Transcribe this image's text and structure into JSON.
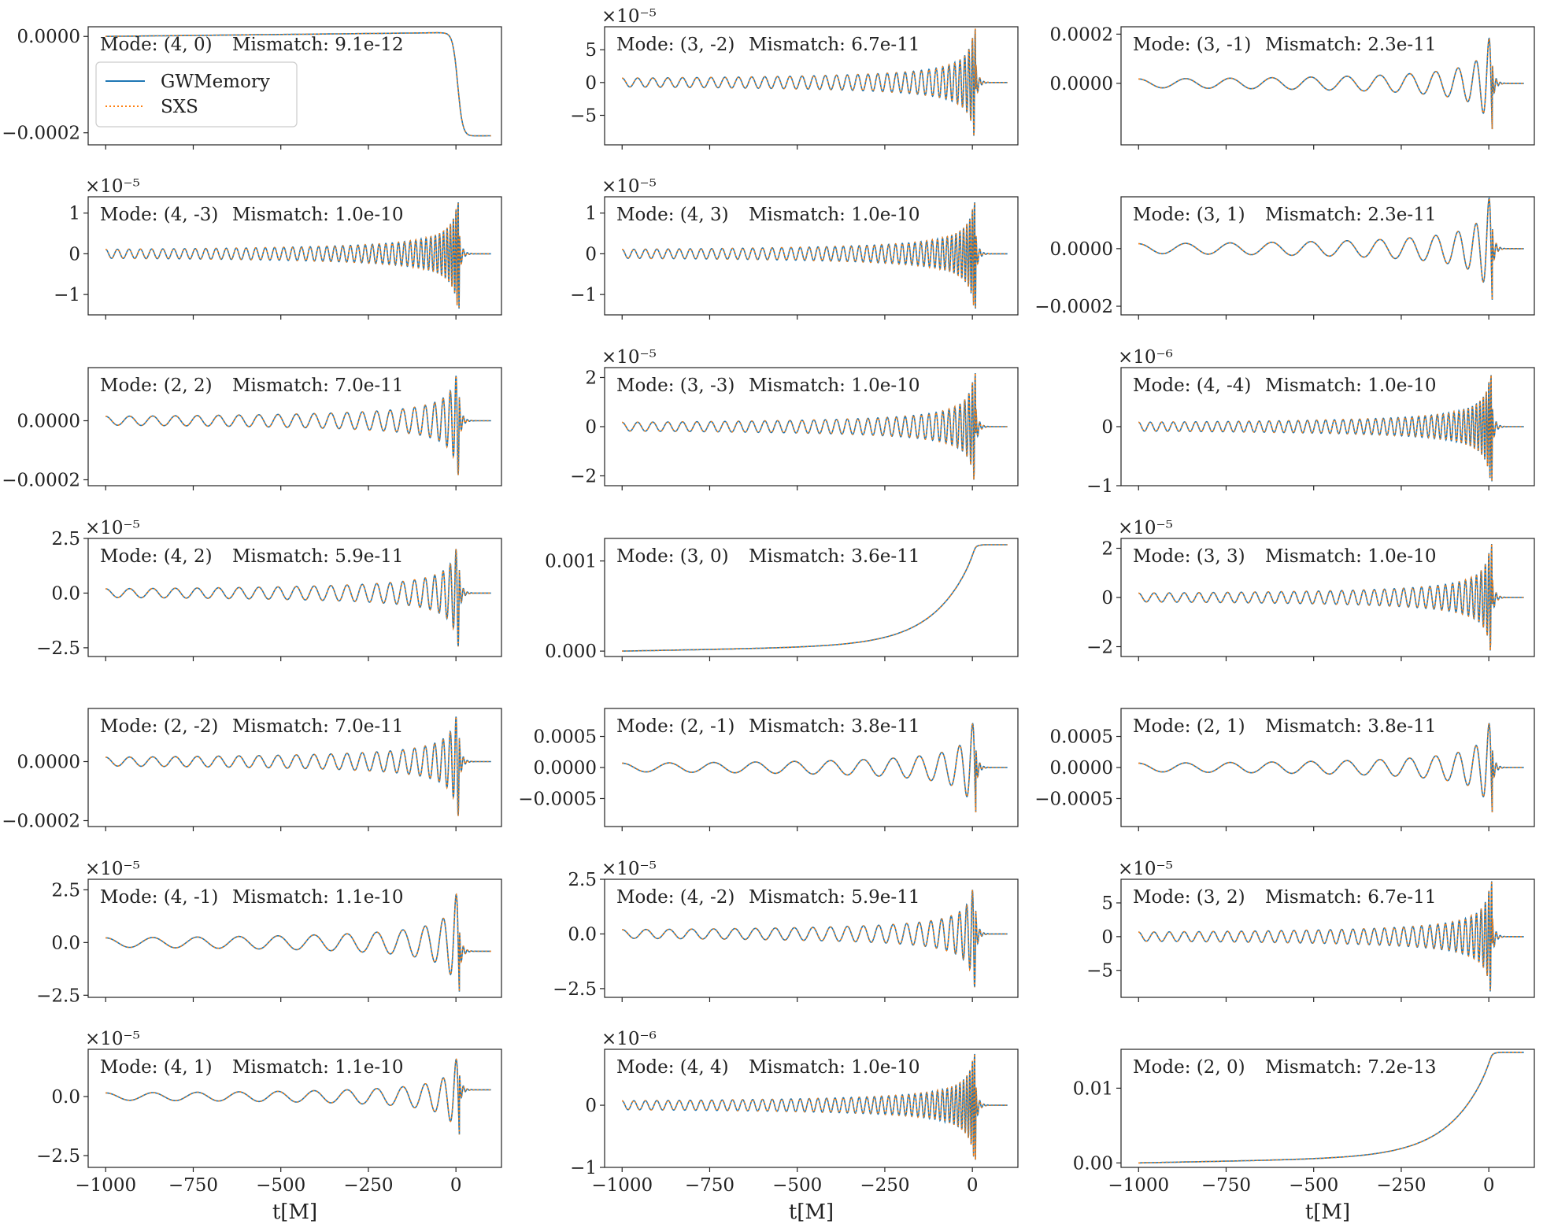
{
  "figure": {
    "xlabel": "t[M]",
    "legend": {
      "placement": "upper-left of first panel",
      "entries": [
        {
          "name": "GWMemory",
          "color": "#1f77b4",
          "style": "solid"
        },
        {
          "name": "SXS",
          "color": "#ff7f0e",
          "style": "dotted"
        }
      ]
    },
    "x_tick_labels": [
      "−1000",
      "−750",
      "−500",
      "−250",
      "0"
    ],
    "x_ticks": [
      -1000,
      -750,
      -500,
      -250,
      0
    ],
    "xlim": [
      -1050,
      130
    ]
  },
  "chart_data": [
    {
      "type": "line",
      "mode_text": "Mode: (4, 0)",
      "mismatch_text": "Mismatch: 9.1e-12",
      "multiplier": "",
      "shape": "step-down",
      "yticks": [
        {
          "v": 0.0,
          "label": "0.0000"
        },
        {
          "v": -0.0002,
          "label": "−0.0002"
        }
      ],
      "ylim": [
        -0.000225,
        2e-05
      ],
      "amp": 0.000215,
      "pre": 8e-06,
      "cycles": 0,
      "ringdown": 0
    },
    {
      "type": "line",
      "mode_text": "Mode: (3, -2)",
      "mismatch_text": "Mismatch: 6.7e-11",
      "multiplier": "×10⁻⁵",
      "shape": "chirp",
      "yticks": [
        {
          "v": 5,
          "label": "5"
        },
        {
          "v": 0,
          "label": "0"
        },
        {
          "v": -5,
          "label": "−5"
        }
      ],
      "ylim": [
        -9.5,
        8.5
      ],
      "amp": 8.3,
      "pre": 0.3,
      "cycles": 34,
      "ringdown": 0
    },
    {
      "type": "line",
      "mode_text": "Mode: (3, -1)",
      "mismatch_text": "Mismatch: 2.3e-11",
      "multiplier": "",
      "shape": "chirp",
      "yticks": [
        {
          "v": 0.0002,
          "label": "0.0002"
        },
        {
          "v": 0.0,
          "label": "0.0000"
        }
      ],
      "ylim": [
        -0.00025,
        0.00023
      ],
      "amp": 0.00022,
      "pre": 0.01,
      "cycles": 11,
      "ringdown": 0
    },
    {
      "type": "line",
      "mode_text": "Mode: (4, -3)",
      "mismatch_text": "Mismatch: 1.0e-10",
      "multiplier": "×10⁻⁵",
      "shape": "chirp",
      "yticks": [
        {
          "v": 1,
          "label": "1"
        },
        {
          "v": 0,
          "label": "0"
        },
        {
          "v": -1,
          "label": "−1"
        }
      ],
      "ylim": [
        -1.5,
        1.4
      ],
      "amp": 1.35,
      "pre": 0.25,
      "cycles": 45,
      "ringdown": 0
    },
    {
      "type": "line",
      "mode_text": "Mode: (4, 3)",
      "mismatch_text": "Mismatch: 1.0e-10",
      "multiplier": "×10⁻⁵",
      "shape": "chirp",
      "yticks": [
        {
          "v": 1,
          "label": "1"
        },
        {
          "v": 0,
          "label": "0"
        },
        {
          "v": -1,
          "label": "−1"
        }
      ],
      "ylim": [
        -1.5,
        1.4
      ],
      "amp": 1.35,
      "pre": 0.25,
      "cycles": 45,
      "ringdown": 0
    },
    {
      "type": "line",
      "mode_text": "Mode: (3, 1)",
      "mismatch_text": "Mismatch: 2.3e-11",
      "multiplier": "",
      "shape": "chirp",
      "yticks": [
        {
          "v": 0.0,
          "label": "0.0000"
        },
        {
          "v": -0.0002,
          "label": "−0.0002"
        }
      ],
      "ylim": [
        -0.00023,
        0.00018
      ],
      "amp": 0.00021,
      "pre": 0.0,
      "cycles": 11,
      "ringdown": 2e-05
    },
    {
      "type": "line",
      "mode_text": "Mode: (2, 2)",
      "mismatch_text": "Mismatch: 7.0e-11",
      "multiplier": "",
      "shape": "chirp",
      "yticks": [
        {
          "v": 0.0,
          "label": "0.0000"
        },
        {
          "v": -0.0002,
          "label": "−0.0002"
        }
      ],
      "ylim": [
        -0.00022,
        0.00018
      ],
      "amp": 0.000185,
      "pre": 0.0,
      "cycles": 22,
      "ringdown": 0
    },
    {
      "type": "line",
      "mode_text": "Mode: (3, -3)",
      "mismatch_text": "Mismatch: 1.0e-10",
      "multiplier": "×10⁻⁵",
      "shape": "chirp",
      "yticks": [
        {
          "v": 2,
          "label": "2"
        },
        {
          "v": 0,
          "label": "0"
        },
        {
          "v": -2,
          "label": "−2"
        }
      ],
      "ylim": [
        -2.4,
        2.4
      ],
      "amp": 2.2,
      "pre": 0.25,
      "cycles": 34,
      "ringdown": 0
    },
    {
      "type": "line",
      "mode_text": "Mode: (4, -4)",
      "mismatch_text": "Mismatch: 1.0e-10",
      "multiplier": "×10⁻⁶",
      "shape": "chirp",
      "yticks": [
        {
          "v": 0,
          "label": "0"
        },
        {
          "v": -1,
          "label": "−1"
        }
      ],
      "ylim": [
        -1.0,
        1.0
      ],
      "amp": 0.93,
      "pre": 0.25,
      "cycles": 45,
      "ringdown": 0
    },
    {
      "type": "line",
      "mode_text": "Mode: (4, 2)",
      "mismatch_text": "Mismatch: 5.9e-11",
      "multiplier": "×10⁻⁵",
      "shape": "chirp",
      "yticks": [
        {
          "v": 2.5,
          "label": "2.5"
        },
        {
          "v": 0.0,
          "label": "0.0"
        },
        {
          "v": -2.5,
          "label": "−2.5"
        }
      ],
      "ylim": [
        -2.9,
        2.5
      ],
      "amp": 2.45,
      "pre": 0.1,
      "cycles": 22,
      "ringdown": 0
    },
    {
      "type": "line",
      "mode_text": "Mode: (3, 0)",
      "mismatch_text": "Mismatch: 3.6e-11",
      "multiplier": "",
      "shape": "rise",
      "yticks": [
        {
          "v": 0.001,
          "label": "0.001"
        },
        {
          "v": 0.0,
          "label": "0.000"
        }
      ],
      "ylim": [
        -6e-05,
        0.00125
      ],
      "amp": 0.00118,
      "pre": 0.0,
      "cycles": 0,
      "ringdown": 0
    },
    {
      "type": "line",
      "mode_text": "Mode: (3, 3)",
      "mismatch_text": "Mismatch: 1.0e-10",
      "multiplier": "×10⁻⁵",
      "shape": "chirp",
      "yticks": [
        {
          "v": 2,
          "label": "2"
        },
        {
          "v": 0,
          "label": "0"
        },
        {
          "v": -2,
          "label": "−2"
        }
      ],
      "ylim": [
        -2.4,
        2.4
      ],
      "amp": 2.2,
      "pre": 0.25,
      "cycles": 34,
      "ringdown": 0
    },
    {
      "type": "line",
      "mode_text": "Mode: (2, -2)",
      "mismatch_text": "Mismatch: 7.0e-11",
      "multiplier": "",
      "shape": "chirp",
      "yticks": [
        {
          "v": 0.0,
          "label": "0.0000"
        },
        {
          "v": -0.0002,
          "label": "−0.0002"
        }
      ],
      "ylim": [
        -0.00022,
        0.00018
      ],
      "amp": 0.000185,
      "pre": 0.0,
      "cycles": 22,
      "ringdown": 0
    },
    {
      "type": "line",
      "mode_text": "Mode: (2, -1)",
      "mismatch_text": "Mismatch: 3.8e-11",
      "multiplier": "",
      "shape": "chirp",
      "yticks": [
        {
          "v": 0.0005,
          "label": "0.0005"
        },
        {
          "v": 0.0,
          "label": "0.0000"
        },
        {
          "v": -0.0005,
          "label": "−0.0005"
        }
      ],
      "ylim": [
        -0.00095,
        0.00095
      ],
      "amp": 0.00085,
      "pre": 0.02,
      "cycles": 11,
      "ringdown": 0
    },
    {
      "type": "line",
      "mode_text": "Mode: (2, 1)",
      "mismatch_text": "Mismatch: 3.8e-11",
      "multiplier": "",
      "shape": "chirp",
      "yticks": [
        {
          "v": 0.0005,
          "label": "0.0005"
        },
        {
          "v": 0.0,
          "label": "0.0000"
        },
        {
          "v": -0.0005,
          "label": "−0.0005"
        }
      ],
      "ylim": [
        -0.00095,
        0.00095
      ],
      "amp": 0.00085,
      "pre": 0.02,
      "cycles": 11,
      "ringdown": 0
    },
    {
      "type": "line",
      "mode_text": "Mode: (4, -1)",
      "mismatch_text": "Mismatch: 1.1e-10",
      "multiplier": "×10⁻⁵",
      "shape": "chirp",
      "yticks": [
        {
          "v": 2.5,
          "label": "2.5"
        },
        {
          "v": 0.0,
          "label": "0.0"
        },
        {
          "v": -2.5,
          "label": "−2.5"
        }
      ],
      "ylim": [
        -2.6,
        3.0
      ],
      "amp": 2.75,
      "pre": 0.1,
      "cycles": 11,
      "ringdown": -0.15
    },
    {
      "type": "line",
      "mode_text": "Mode: (4, -2)",
      "mismatch_text": "Mismatch: 5.9e-11",
      "multiplier": "×10⁻⁵",
      "shape": "chirp",
      "yticks": [
        {
          "v": 2.5,
          "label": "2.5"
        },
        {
          "v": 0.0,
          "label": "0.0"
        },
        {
          "v": -2.5,
          "label": "−2.5"
        }
      ],
      "ylim": [
        -2.9,
        2.5
      ],
      "amp": 2.45,
      "pre": 0.1,
      "cycles": 22,
      "ringdown": 0
    },
    {
      "type": "line",
      "mode_text": "Mode: (3, 2)",
      "mismatch_text": "Mismatch: 6.7e-11",
      "multiplier": "×10⁻⁵",
      "shape": "chirp",
      "yticks": [
        {
          "v": 5,
          "label": "5"
        },
        {
          "v": 0,
          "label": "0"
        },
        {
          "v": -5,
          "label": "−5"
        }
      ],
      "ylim": [
        -9.0,
        8.5
      ],
      "amp": 8.3,
      "pre": 0.3,
      "cycles": 34,
      "ringdown": 0
    },
    {
      "type": "line",
      "mode_text": "Mode: (4, 1)",
      "mismatch_text": "Mismatch: 1.1e-10",
      "multiplier": "×10⁻⁵",
      "shape": "chirp",
      "yticks": [
        {
          "v": 0.0,
          "label": "0.0"
        },
        {
          "v": -2.5,
          "label": "−2.5"
        }
      ],
      "ylim": [
        -3.0,
        2.0
      ],
      "amp": 1.9,
      "pre": 0.15,
      "cycles": 11,
      "ringdown": 0.15
    },
    {
      "type": "line",
      "mode_text": "Mode: (4, 4)",
      "mismatch_text": "Mismatch: 1.0e-10",
      "multiplier": "×10⁻⁶",
      "shape": "chirp",
      "yticks": [
        {
          "v": 0,
          "label": "0"
        },
        {
          "v": -1,
          "label": "−1"
        }
      ],
      "ylim": [
        -1.0,
        0.9
      ],
      "amp": 0.88,
      "pre": 0.25,
      "cycles": 45,
      "ringdown": 0
    },
    {
      "type": "line",
      "mode_text": "Mode: (2, 0)",
      "mismatch_text": "Mismatch: 7.2e-13",
      "multiplier": "",
      "shape": "rise",
      "yticks": [
        {
          "v": 0.01,
          "label": "0.01"
        },
        {
          "v": 0.0,
          "label": "0.00"
        }
      ],
      "ylim": [
        -0.0006,
        0.0152
      ],
      "amp": 0.0148,
      "pre": 0.0,
      "cycles": 0,
      "ringdown": 0
    }
  ]
}
